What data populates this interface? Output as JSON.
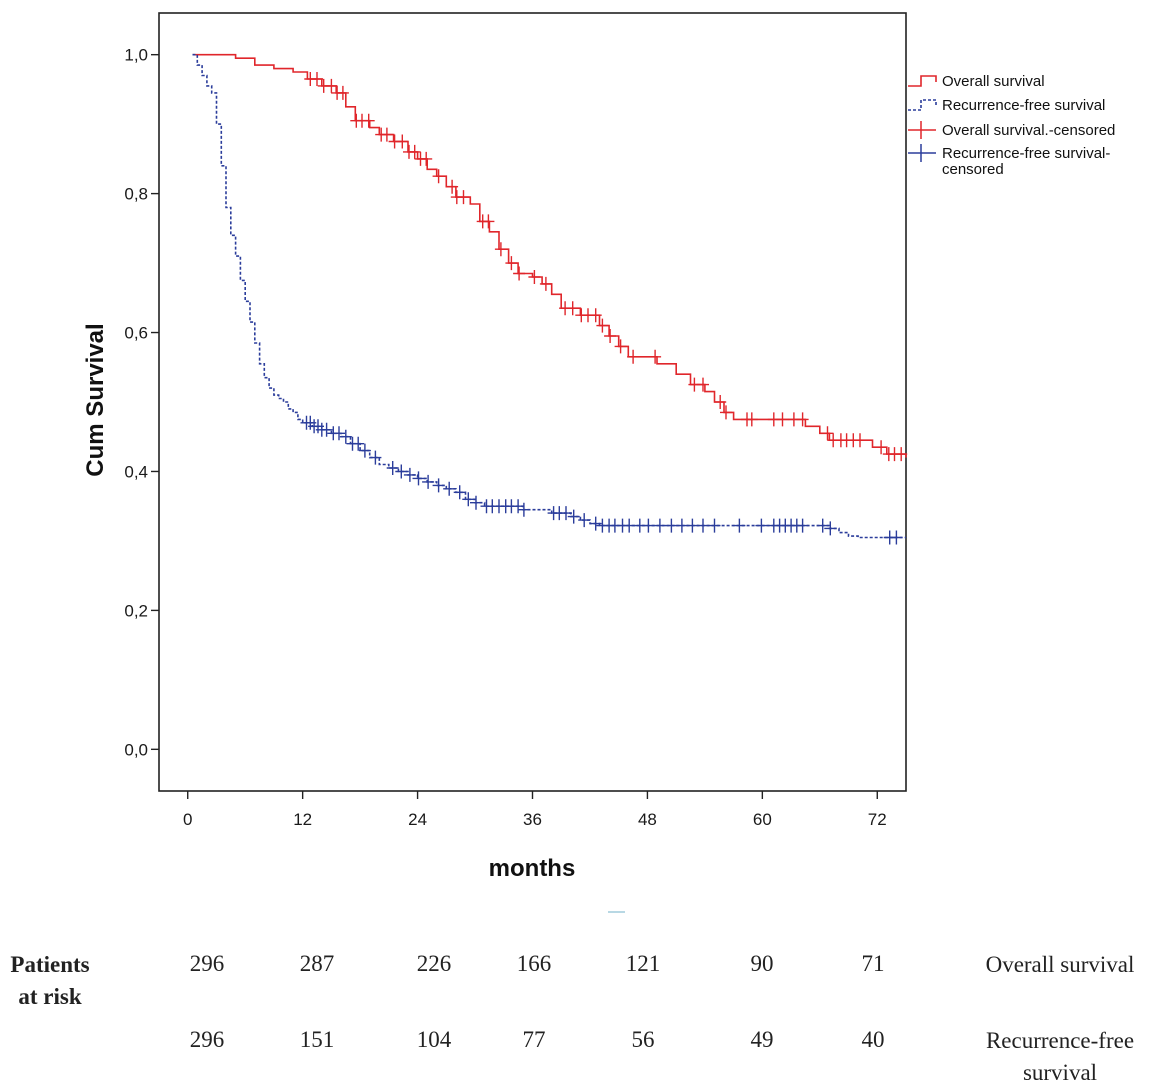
{
  "chart_data": {
    "type": "line",
    "subtype": "kaplan-meier",
    "title": "",
    "xlabel": "months",
    "ylabel": "Cum Survival",
    "xlim": [
      -3,
      75
    ],
    "ylim": [
      -0.06,
      1.06
    ],
    "x_ticks": [
      0,
      12,
      24,
      36,
      48,
      60,
      72
    ],
    "x_tick_labels": [
      "0",
      "12",
      "24",
      "36",
      "48",
      "60",
      "72"
    ],
    "y_ticks": [
      0,
      0.2,
      0.4,
      0.6,
      0.8,
      1.0
    ],
    "y_tick_labels": [
      "0,0",
      "0,2",
      "0,4",
      "0,6",
      "0,8",
      "1,0"
    ],
    "legend": {
      "position": "top-right",
      "entries": [
        {
          "label": "Overall survival",
          "type": "step-line",
          "color": "#e0262b"
        },
        {
          "label": "Recurrence-free survival",
          "type": "dashed-step-line",
          "color": "#2b3d9b"
        },
        {
          "label": "Overall survival.-censored",
          "type": "censor-mark",
          "color": "#e0262b"
        },
        {
          "label": "Recurrence-free survival-censored",
          "label_lines": [
            "Recurrence-free survival-",
            "censored"
          ],
          "type": "censor-mark",
          "color": "#2b3d9b"
        }
      ]
    },
    "series": [
      {
        "name": "Overall survival",
        "color": "#e0262b",
        "style": "solid",
        "points": [
          [
            0.5,
            1.0
          ],
          [
            3,
            1.0
          ],
          [
            5,
            0.995
          ],
          [
            7,
            0.985
          ],
          [
            9,
            0.98
          ],
          [
            11,
            0.975
          ],
          [
            12.5,
            0.965
          ],
          [
            14,
            0.955
          ],
          [
            15.5,
            0.945
          ],
          [
            16.5,
            0.925
          ],
          [
            17.5,
            0.905
          ],
          [
            19,
            0.895
          ],
          [
            20,
            0.885
          ],
          [
            21.5,
            0.875
          ],
          [
            23,
            0.86
          ],
          [
            24,
            0.85
          ],
          [
            25,
            0.835
          ],
          [
            26,
            0.825
          ],
          [
            27,
            0.81
          ],
          [
            28,
            0.795
          ],
          [
            29.5,
            0.785
          ],
          [
            30.5,
            0.76
          ],
          [
            31.5,
            0.745
          ],
          [
            32.5,
            0.72
          ],
          [
            33.5,
            0.7
          ],
          [
            34.5,
            0.685
          ],
          [
            36,
            0.68
          ],
          [
            37,
            0.67
          ],
          [
            38,
            0.655
          ],
          [
            39,
            0.635
          ],
          [
            41,
            0.625
          ],
          [
            43,
            0.61
          ],
          [
            44,
            0.595
          ],
          [
            45,
            0.58
          ],
          [
            46,
            0.565
          ],
          [
            49,
            0.555
          ],
          [
            51,
            0.54
          ],
          [
            52.5,
            0.525
          ],
          [
            54,
            0.515
          ],
          [
            55,
            0.5
          ],
          [
            56,
            0.485
          ],
          [
            57,
            0.475
          ],
          [
            63,
            0.475
          ],
          [
            64.5,
            0.465
          ],
          [
            66,
            0.455
          ],
          [
            67,
            0.445
          ],
          [
            70,
            0.445
          ],
          [
            71.5,
            0.435
          ],
          [
            73,
            0.425
          ],
          [
            75,
            0.42
          ]
        ],
        "censored_x": [
          12.8,
          13.5,
          14.2,
          15,
          15.6,
          16.2,
          17.6,
          18.2,
          18.9,
          20.2,
          20.8,
          21.6,
          22.4,
          23.1,
          23.7,
          24.3,
          24.9,
          26.2,
          27.6,
          28.1,
          28.8,
          30.8,
          31.4,
          32.7,
          33.8,
          34.6,
          36.2,
          37.4,
          39.4,
          40.2,
          41.1,
          41.8,
          42.6,
          43.3,
          44.1,
          45.2,
          46.5,
          48.8,
          52.9,
          53.8,
          55.6,
          56.2,
          58.4,
          58.9,
          61.2,
          62.1,
          63.3,
          64.2,
          66.8,
          67.4,
          68.2,
          68.8,
          69.5,
          70.2,
          72.4,
          73.2,
          73.8,
          74.5
        ]
      },
      {
        "name": "Recurrence-free survival",
        "color": "#2b3d9b",
        "style": "dashed",
        "points": [
          [
            0.5,
            1.0
          ],
          [
            1,
            0.985
          ],
          [
            1.5,
            0.97
          ],
          [
            2,
            0.955
          ],
          [
            2.5,
            0.945
          ],
          [
            3,
            0.9
          ],
          [
            3.5,
            0.84
          ],
          [
            4,
            0.78
          ],
          [
            4.5,
            0.74
          ],
          [
            5,
            0.71
          ],
          [
            5.5,
            0.675
          ],
          [
            6,
            0.645
          ],
          [
            6.5,
            0.615
          ],
          [
            7,
            0.585
          ],
          [
            7.5,
            0.555
          ],
          [
            8,
            0.535
          ],
          [
            8.5,
            0.52
          ],
          [
            9,
            0.51
          ],
          [
            9.5,
            0.505
          ],
          [
            10,
            0.5
          ],
          [
            10.5,
            0.49
          ],
          [
            11,
            0.485
          ],
          [
            11.5,
            0.475
          ],
          [
            12,
            0.47
          ],
          [
            13,
            0.465
          ],
          [
            14,
            0.46
          ],
          [
            15,
            0.455
          ],
          [
            16,
            0.45
          ],
          [
            17,
            0.44
          ],
          [
            18,
            0.43
          ],
          [
            19,
            0.42
          ],
          [
            20,
            0.41
          ],
          [
            21,
            0.405
          ],
          [
            22,
            0.4
          ],
          [
            23,
            0.395
          ],
          [
            24,
            0.39
          ],
          [
            25,
            0.385
          ],
          [
            26,
            0.38
          ],
          [
            27,
            0.375
          ],
          [
            28,
            0.37
          ],
          [
            29,
            0.36
          ],
          [
            30,
            0.355
          ],
          [
            31,
            0.35
          ],
          [
            34,
            0.35
          ],
          [
            35,
            0.345
          ],
          [
            37,
            0.345
          ],
          [
            38,
            0.34
          ],
          [
            40,
            0.335
          ],
          [
            41,
            0.33
          ],
          [
            42,
            0.325
          ],
          [
            43,
            0.322
          ],
          [
            66,
            0.322
          ],
          [
            67,
            0.318
          ],
          [
            68,
            0.312
          ],
          [
            69,
            0.307
          ],
          [
            70,
            0.305
          ],
          [
            75,
            0.305
          ]
        ],
        "censored_x": [
          12.4,
          12.8,
          13.2,
          13.6,
          14,
          14.5,
          15.2,
          15.8,
          16.5,
          17.2,
          17.8,
          18.5,
          19.6,
          21.4,
          22.3,
          23.2,
          24.1,
          25.1,
          26.2,
          27.3,
          28.4,
          29.3,
          30.1,
          31.2,
          31.8,
          32.5,
          33.2,
          33.8,
          34.5,
          35.1,
          38.2,
          38.8,
          39.5,
          40.3,
          41.4,
          42.6,
          43.3,
          44,
          44.6,
          45.4,
          46.1,
          47.2,
          48.1,
          49.3,
          50.5,
          51.6,
          52.7,
          53.8,
          55,
          57.6,
          59.9,
          61.2,
          61.8,
          62.4,
          63,
          63.6,
          64.2,
          66.3,
          67.1,
          73.3,
          74
        ]
      }
    ],
    "risk_table": {
      "heading": "Patients at risk",
      "heading_lines": [
        "Patients",
        "at risk"
      ],
      "rows": [
        {
          "label": "Overall survival",
          "label_lines": [
            "Overall survival"
          ],
          "values": [
            "296",
            "287",
            "226",
            "166",
            "121",
            "90",
            "71"
          ]
        },
        {
          "label": "Recurrence-free survival",
          "label_lines": [
            "Recurrence-free",
            "survival"
          ],
          "values": [
            "296",
            "151",
            "104",
            "77",
            "56",
            "49",
            "40"
          ]
        }
      ]
    }
  }
}
